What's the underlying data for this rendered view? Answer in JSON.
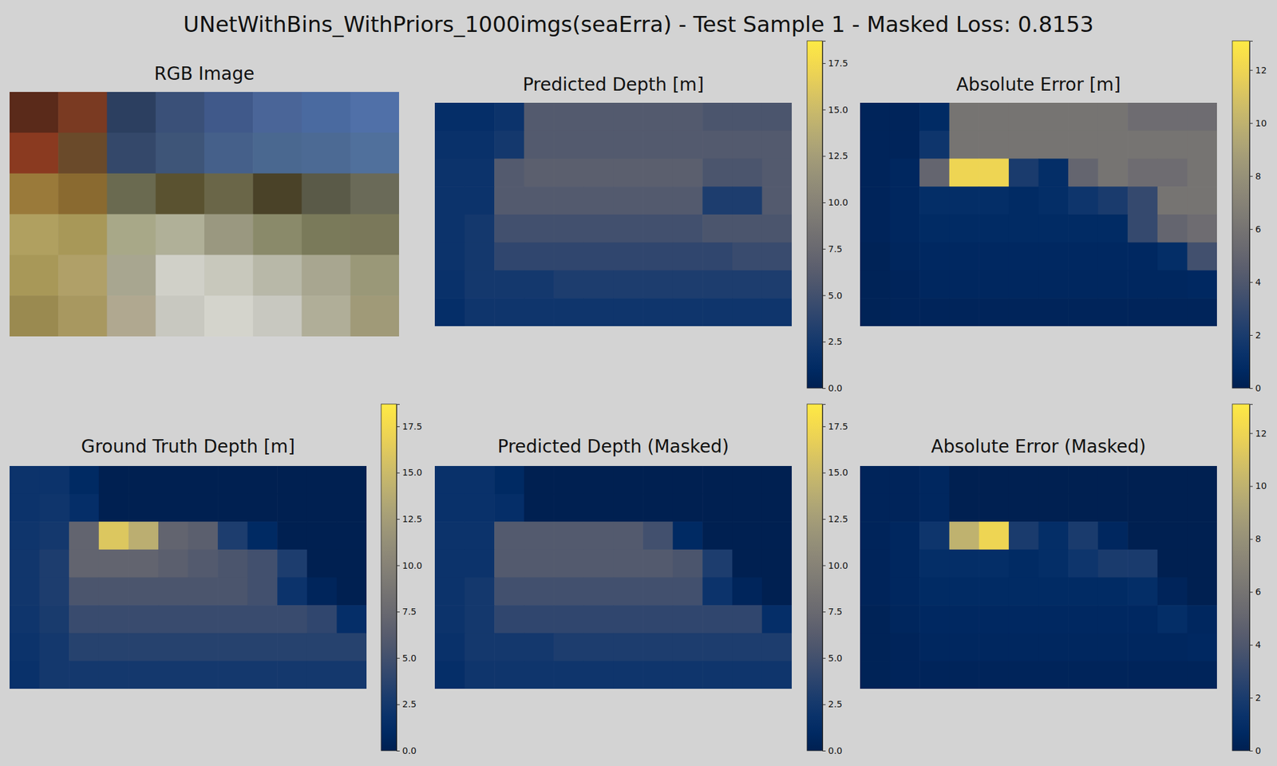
{
  "title": "UNetWithBins_WithPriors_1000imgs(seaErra) - Test Sample 1 - Masked Loss: 0.8153",
  "chart_data": [
    {
      "type": "image",
      "title": "RGB Image",
      "colors": [
        [
          "#5a2a1a",
          "#7a3a22",
          "#2c3f60",
          "#3a5078",
          "#40598a",
          "#4a6598",
          "#4a6aa0",
          "#5070a8"
        ],
        [
          "#8a3a20",
          "#6a4a2a",
          "#34486a",
          "#3e5578",
          "#45608a",
          "#4a6890",
          "#4c6a94",
          "#50709c"
        ],
        [
          "#9a7a3a",
          "#8a6a30",
          "#6a6a50",
          "#5a5230",
          "#6a6648",
          "#4a4228",
          "#5a5a48",
          "#6a6a58"
        ],
        [
          "#b0a060",
          "#a89858",
          "#a8a888",
          "#b0b098",
          "#9a9880",
          "#8a8a6a",
          "#7a7a5a",
          "#7a785a"
        ],
        [
          "#a89858",
          "#b0a068",
          "#a8a690",
          "#d0d0c8",
          "#c8c8bc",
          "#b8b8a8",
          "#a8a690",
          "#9a9878"
        ],
        [
          "#9a8a50",
          "#a89860",
          "#b0a890",
          "#c8c8c0",
          "#d4d4cc",
          "#c8c8c0",
          "#b0ae98",
          "#a09a78"
        ]
      ]
    },
    {
      "type": "heatmap",
      "title": "Predicted Depth [m]",
      "values": [
        [
          1.5,
          1.5,
          2,
          6,
          6,
          6,
          6,
          6,
          6,
          5.5,
          5.5,
          5.5
        ],
        [
          1.8,
          1.8,
          2.5,
          6,
          6,
          6,
          6,
          6,
          6,
          6,
          6,
          6
        ],
        [
          2,
          2,
          6,
          6.5,
          6.5,
          6.5,
          6.5,
          6.5,
          6.5,
          5.5,
          5.5,
          6
        ],
        [
          2,
          2,
          6,
          6,
          6,
          6,
          6,
          6,
          6,
          3,
          3,
          6
        ],
        [
          2,
          2.5,
          5,
          5,
          5,
          5,
          5,
          5,
          5,
          5.5,
          5.5,
          5.5
        ],
        [
          2,
          2.5,
          4,
          4,
          4,
          4,
          4,
          4,
          4,
          4,
          4.5,
          4.5
        ],
        [
          1.8,
          2.5,
          2.5,
          2.5,
          3,
          3,
          3,
          3,
          3,
          3,
          3,
          3
        ],
        [
          1.5,
          2.2,
          2.2,
          2.2,
          2.2,
          2.2,
          2.2,
          2.2,
          2.2,
          2.2,
          2.2,
          2.2
        ]
      ],
      "colorbar": {
        "range": [
          0,
          18.7
        ],
        "ticks": [
          {
            "value": 0,
            "label": "0.0"
          },
          2.5,
          {
            "value": 5,
            "label": "5.0"
          },
          7.5,
          {
            "value": 10,
            "label": "10.0"
          },
          12.5,
          {
            "value": 15,
            "label": "15.0"
          },
          17.5
        ]
      }
    },
    {
      "type": "heatmap",
      "title": "Absolute Error [m]",
      "values": [
        [
          0.3,
          0.3,
          0.8,
          6,
          6,
          6,
          6,
          6,
          6,
          5.5,
          5.5,
          5.5
        ],
        [
          0.3,
          0.3,
          1.5,
          6,
          6,
          6,
          6,
          6,
          6,
          6,
          6,
          6
        ],
        [
          0.3,
          0.5,
          5,
          12,
          12,
          2,
          1,
          5,
          6,
          5.5,
          5.5,
          6
        ],
        [
          0.3,
          0.5,
          1,
          1,
          1,
          0.8,
          1,
          1.5,
          2,
          3,
          6,
          6
        ],
        [
          0.3,
          0.5,
          0.8,
          0.8,
          0.8,
          0.8,
          0.8,
          0.8,
          0.8,
          3,
          5,
          5.5
        ],
        [
          0.2,
          0.4,
          0.6,
          0.6,
          0.6,
          0.6,
          0.6,
          0.6,
          0.6,
          0.6,
          1,
          3.5
        ],
        [
          0.2,
          0.3,
          0.5,
          0.5,
          0.5,
          0.5,
          0.5,
          0.5,
          0.5,
          0.5,
          0.5,
          0.6
        ],
        [
          0.2,
          0.3,
          0.3,
          0.3,
          0.3,
          0.3,
          0.3,
          0.3,
          0.3,
          0.3,
          0.3,
          0.3
        ]
      ],
      "colorbar": {
        "range": [
          0,
          13.1
        ],
        "ticks": [
          0,
          2,
          4,
          6,
          8,
          10,
          12
        ]
      }
    },
    {
      "type": "heatmap",
      "title": "Ground Truth Depth [m]",
      "values": [
        [
          2,
          2,
          1,
          0,
          0,
          0,
          0,
          0,
          0,
          0,
          0,
          0
        ],
        [
          2,
          2.2,
          1.5,
          0,
          0,
          0,
          0,
          0,
          0,
          0,
          0,
          0
        ],
        [
          2.2,
          2.5,
          7,
          16,
          14,
          7,
          6.5,
          3,
          1,
          0,
          0,
          0
        ],
        [
          2.3,
          3,
          7,
          7,
          7,
          6.5,
          6,
          5.5,
          5,
          3,
          0,
          0
        ],
        [
          2.3,
          3,
          5.5,
          5.5,
          5.5,
          5.5,
          5.5,
          5.5,
          5,
          2,
          0.5,
          0
        ],
        [
          2.2,
          2.8,
          4.5,
          4.5,
          4.5,
          4.5,
          4.5,
          4.5,
          4.5,
          4.5,
          4,
          1.5
        ],
        [
          2,
          2.5,
          3.5,
          3.5,
          3.5,
          3.5,
          3.5,
          3.5,
          3.5,
          3.5,
          3.5,
          3.5
        ],
        [
          1.8,
          2.5,
          2.5,
          2.5,
          2.5,
          2.5,
          2.5,
          2.5,
          2.5,
          2.5,
          2.5,
          2.5
        ]
      ],
      "colorbar": {
        "range": [
          0,
          18.7
        ],
        "ticks": [
          {
            "value": 0,
            "label": "0.0"
          },
          2.5,
          {
            "value": 5,
            "label": "5.0"
          },
          7.5,
          {
            "value": 10,
            "label": "10.0"
          },
          12.5,
          {
            "value": 15,
            "label": "15.0"
          },
          17.5
        ]
      }
    },
    {
      "type": "heatmap",
      "title": "Predicted Depth (Masked)",
      "values": [
        [
          1.8,
          1.8,
          1,
          0,
          0,
          0,
          0,
          0,
          0,
          0,
          0,
          0
        ],
        [
          1.8,
          1.8,
          1.5,
          0,
          0,
          0,
          0,
          0,
          0,
          0,
          0,
          0
        ],
        [
          2,
          2,
          6,
          6,
          6,
          6,
          6,
          5,
          1,
          0,
          0,
          0
        ],
        [
          2,
          2,
          6,
          6,
          6,
          6,
          6,
          6,
          5.5,
          3,
          0,
          0
        ],
        [
          2,
          2.5,
          5,
          5,
          5,
          5,
          5,
          5,
          5,
          2,
          0.5,
          0
        ],
        [
          2,
          2.5,
          4,
          4,
          4,
          4,
          4,
          4,
          4,
          4,
          4,
          1.5
        ],
        [
          1.8,
          2.5,
          2.5,
          2.5,
          3,
          3,
          3,
          3,
          3,
          3,
          3,
          3
        ],
        [
          1.5,
          2.2,
          2.2,
          2.2,
          2.2,
          2.2,
          2.2,
          2.2,
          2.2,
          2.2,
          2.2,
          2.2
        ]
      ],
      "colorbar": {
        "range": [
          0,
          18.7
        ],
        "ticks": [
          {
            "value": 0,
            "label": "0.0"
          },
          2.5,
          {
            "value": 5,
            "label": "5.0"
          },
          7.5,
          {
            "value": 10,
            "label": "10.0"
          },
          12.5,
          {
            "value": 15,
            "label": "15.0"
          },
          17.5
        ]
      }
    },
    {
      "type": "heatmap",
      "title": "Absolute Error (Masked)",
      "values": [
        [
          0.3,
          0.3,
          0.5,
          0,
          0,
          0,
          0,
          0,
          0,
          0,
          0,
          0
        ],
        [
          0.3,
          0.3,
          0.5,
          0,
          0,
          0,
          0,
          0,
          0,
          0,
          0,
          0
        ],
        [
          0.3,
          0.5,
          1.5,
          10,
          12,
          2,
          1,
          2,
          0.5,
          0,
          0,
          0
        ],
        [
          0.3,
          0.5,
          1,
          1,
          1,
          0.8,
          1,
          1.5,
          2,
          2,
          0,
          0
        ],
        [
          0.3,
          0.5,
          0.8,
          0.8,
          0.8,
          0.8,
          0.8,
          0.8,
          0.8,
          1,
          0.3,
          0
        ],
        [
          0.2,
          0.4,
          0.6,
          0.6,
          0.6,
          0.6,
          0.6,
          0.6,
          0.6,
          0.6,
          1,
          0.5
        ],
        [
          0.2,
          0.3,
          0.5,
          0.5,
          0.5,
          0.5,
          0.5,
          0.5,
          0.5,
          0.5,
          0.5,
          0.6
        ],
        [
          0.2,
          0.3,
          0.3,
          0.3,
          0.3,
          0.3,
          0.3,
          0.3,
          0.3,
          0.3,
          0.3,
          0.3
        ]
      ],
      "colorbar": {
        "range": [
          0,
          13.1
        ],
        "ticks": [
          0,
          2,
          4,
          6,
          8,
          10,
          12
        ]
      }
    }
  ]
}
